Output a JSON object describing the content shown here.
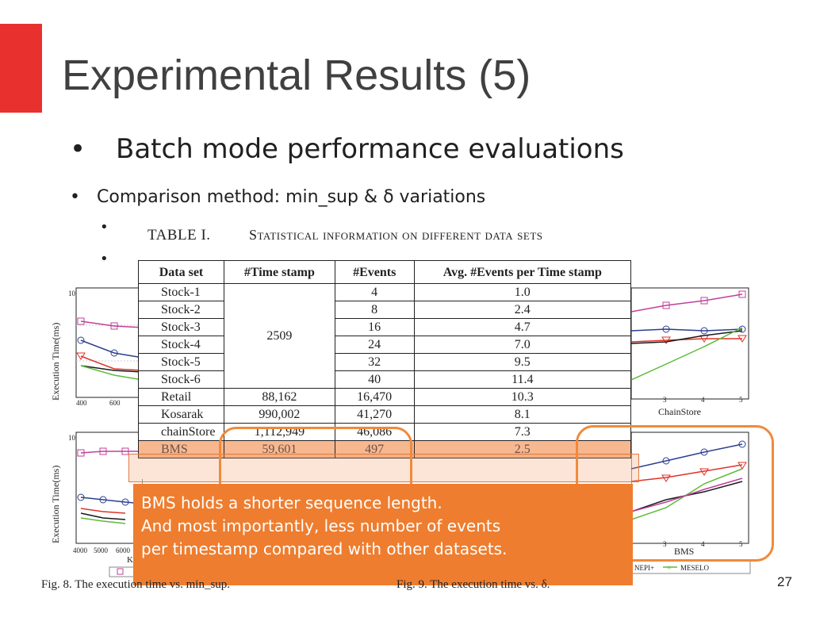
{
  "slide": {
    "title": "Experimental Results (5)",
    "bullet1": "Batch mode performance evaluations",
    "bullet2": "Comparison method: min_sup & δ variations",
    "page_number": "27",
    "accent_color": "#e8312f"
  },
  "table": {
    "label": "TABLE I.",
    "caption": "Statistical information on different data sets",
    "headers": [
      "Data set",
      "#Time stamp",
      "#Events",
      "Avg. #Events per Time stamp"
    ],
    "rows": [
      {
        "name": "Stock-1",
        "ts": "",
        "events": "4",
        "avg": "1.0"
      },
      {
        "name": "Stock-2",
        "ts": "",
        "events": "8",
        "avg": "2.4"
      },
      {
        "name": "Stock-3",
        "ts": "",
        "events": "16",
        "avg": "4.7"
      },
      {
        "name": "Stock-4",
        "ts": "",
        "events": "24",
        "avg": "7.0"
      },
      {
        "name": "Stock-5",
        "ts": "",
        "events": "32",
        "avg": "9.5"
      },
      {
        "name": "Stock-6",
        "ts": "",
        "events": "40",
        "avg": "11.4"
      },
      {
        "name": "Retail",
        "ts": "88,162",
        "events": "16,470",
        "avg": "10.3"
      },
      {
        "name": "Kosarak",
        "ts": "990,002",
        "events": "41,270",
        "avg": "8.1"
      },
      {
        "name": "chainStore",
        "ts": "1,112,949",
        "events": "46,086",
        "avg": "7.3"
      },
      {
        "name": "BMS",
        "ts": "59,601",
        "events": "497",
        "avg": "2.5"
      }
    ],
    "stock_ts": "2509",
    "highlight_color": "#f7b890"
  },
  "note": {
    "line1": "BMS holds a shorter sequence length.",
    "line2": "And most importantly,  less number of events",
    "line3": "per timestamp compared with other datasets.",
    "bg_color": "#ee7d2f"
  },
  "figures": {
    "fig8_caption": "Fig. 8.    The execution time vs. min_sup.",
    "fig9_caption": "Fig. 9.    The execution time vs. δ.",
    "y_label": "Execution Time(ms)",
    "left_top_ticks": [
      "400",
      "600"
    ],
    "left_bottom_ticks": [
      "4000",
      "5000",
      "6000"
    ],
    "left_bottom_partial": "K",
    "right_top_xlabel": "ChainStore",
    "right_bottom_xlabel": "BMS",
    "right_ticks": [
      "3",
      "4",
      "5"
    ],
    "legend_partial": "NEPI+",
    "legend_meselo": "MESELO",
    "y_top": "10",
    "colors": {
      "magenta": "#c0409a",
      "blue": "#2b3f8f",
      "red": "#e0332a",
      "black": "#1a1a1a",
      "green": "#5dbb3a"
    }
  }
}
